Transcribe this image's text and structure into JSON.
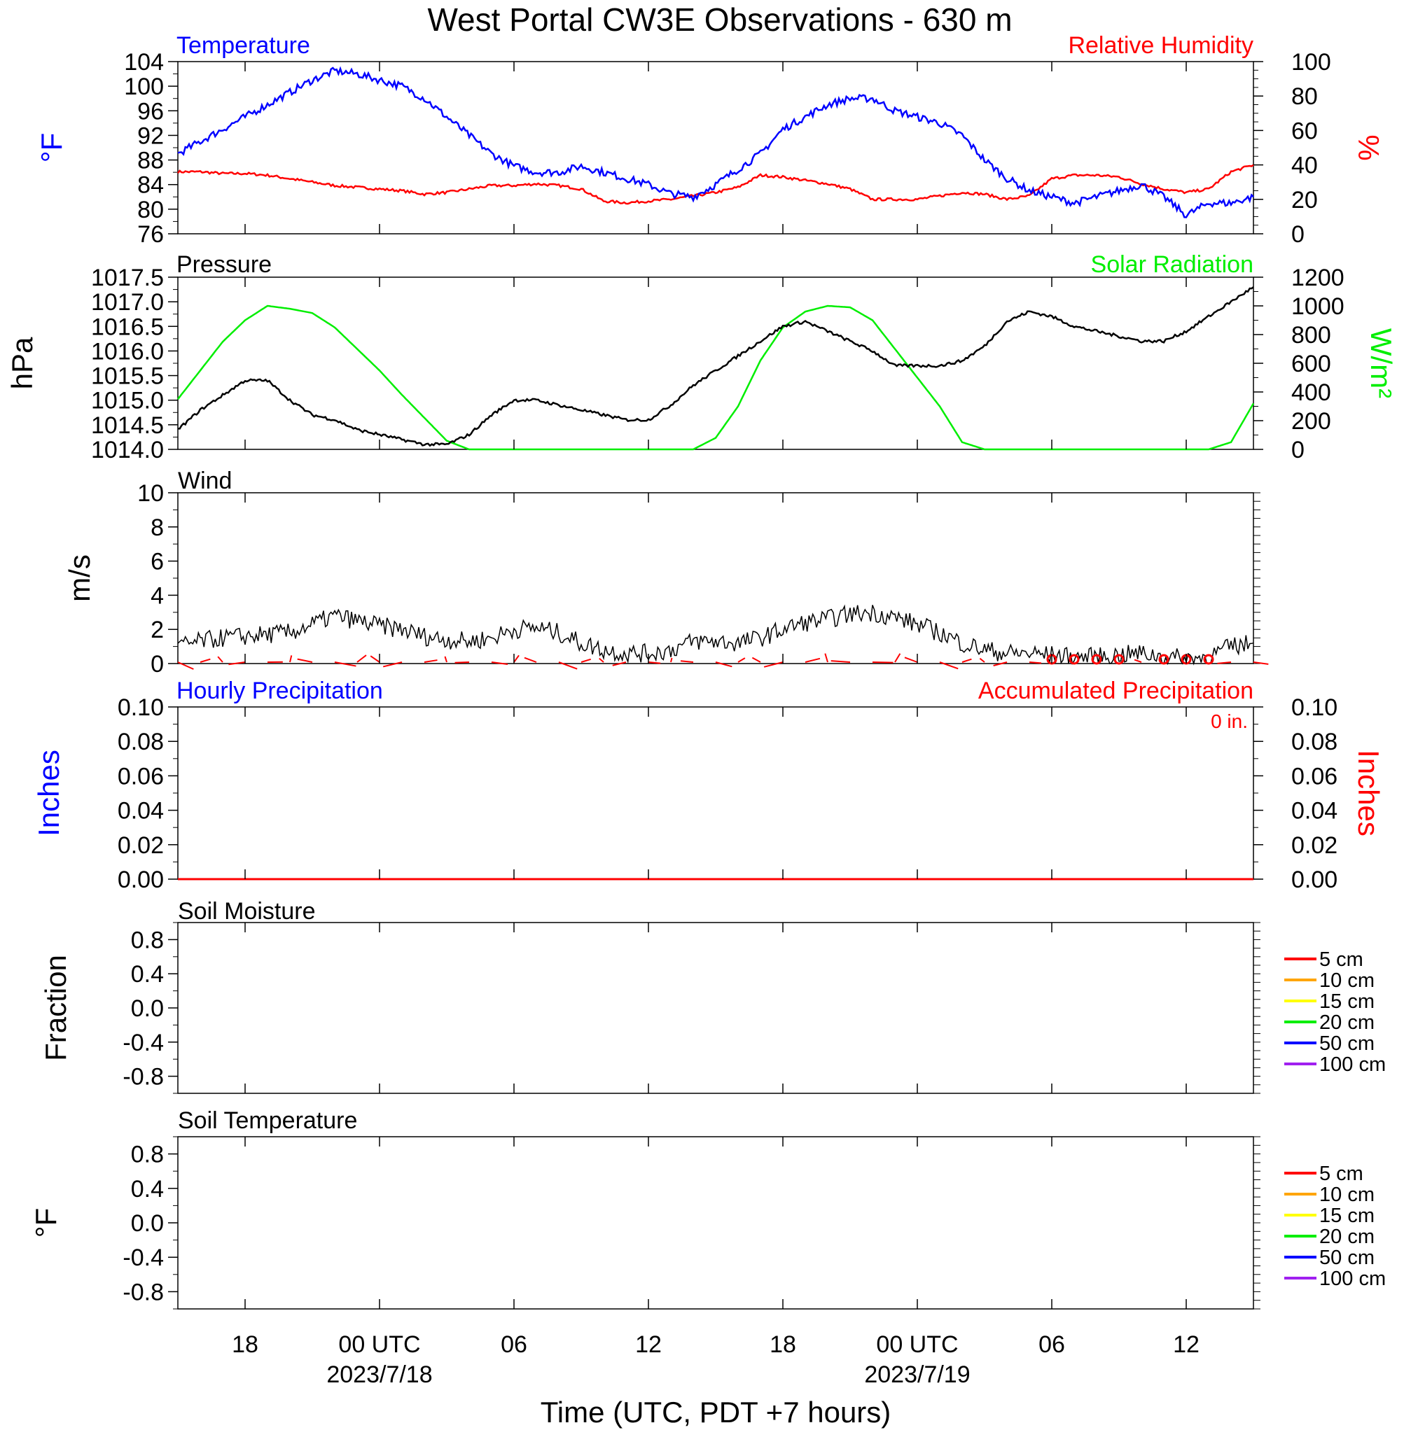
{
  "title": "West Portal CW3E Observations - 630 m",
  "x_axis": {
    "label": "Time (UTC, PDT +7 hours)",
    "ticks": [
      {
        "hour": 18,
        "label": "18",
        "sub": ""
      },
      {
        "hour": 24,
        "label": "00 UTC",
        "sub": "2023/7/18"
      },
      {
        "hour": 30,
        "label": "06",
        "sub": ""
      },
      {
        "hour": 36,
        "label": "12",
        "sub": ""
      },
      {
        "hour": 42,
        "label": "18",
        "sub": ""
      },
      {
        "hour": 48,
        "label": "00 UTC",
        "sub": "2023/7/19"
      },
      {
        "hour": 54,
        "label": "06",
        "sub": ""
      },
      {
        "hour": 60,
        "label": "12",
        "sub": ""
      }
    ]
  },
  "colors": {
    "temperature": "#0000ff",
    "humidity": "#ff0000",
    "pressure": "#000000",
    "solar": "#00ee00",
    "wind": "#000000",
    "barb": "#ff0000",
    "hourly_precip": "#0000ff",
    "accum_precip": "#ff0000"
  },
  "panels": {
    "temp_rh": {
      "left_title": "Temperature",
      "right_title": "Relative Humidity",
      "left_unit": "°F",
      "right_unit": "%",
      "left_ticks": [
        "76",
        "80",
        "84",
        "88",
        "92",
        "96",
        "100",
        "104"
      ],
      "right_ticks": [
        "0",
        "20",
        "40",
        "60",
        "80",
        "100"
      ]
    },
    "pressure_solar": {
      "left_title": "Pressure",
      "right_title": "Solar Radiation",
      "left_unit": "hPa",
      "right_unit": "W/m²",
      "left_ticks": [
        "1014.0",
        "1014.5",
        "1015.0",
        "1015.5",
        "1016.0",
        "1016.5",
        "1017.0",
        "1017.5"
      ],
      "right_ticks": [
        "0",
        "200",
        "400",
        "600",
        "800",
        "1000",
        "1200"
      ]
    },
    "wind": {
      "left_title": "Wind",
      "left_unit": "m/s",
      "left_ticks": [
        "0",
        "2",
        "4",
        "6",
        "8",
        "10"
      ]
    },
    "precip": {
      "left_title": "Hourly Precipitation",
      "right_title": "Accumulated Precipitation",
      "accum_label": "0 in.",
      "left_unit": "Inches",
      "right_unit": "Inches",
      "left_ticks": [
        "0.00",
        "0.02",
        "0.04",
        "0.06",
        "0.08",
        "0.10"
      ],
      "right_ticks": [
        "0.00",
        "0.02",
        "0.04",
        "0.06",
        "0.08",
        "0.10"
      ]
    },
    "soil_moisture": {
      "left_title": "Soil Moisture",
      "left_unit": "Fraction",
      "left_ticks": [
        "-0.8",
        "-0.4",
        "0.0",
        "0.4",
        "0.8"
      ],
      "legend": [
        "5 cm",
        "10 cm",
        "15 cm",
        "20 cm",
        "50 cm",
        "100 cm"
      ]
    },
    "soil_temp": {
      "left_title": "Soil Temperature",
      "left_unit": "°F",
      "left_ticks": [
        "-0.8",
        "-0.4",
        "0.0",
        "0.4",
        "0.8"
      ],
      "legend": [
        "5 cm",
        "10 cm",
        "15 cm",
        "20 cm",
        "50 cm",
        "100 cm"
      ]
    }
  },
  "legend_colors": [
    "#ff0000",
    "#ffa500",
    "#ffff00",
    "#00ee00",
    "#0000ff",
    "#a020f0"
  ],
  "chart_data": [
    {
      "type": "line",
      "title": "Temperature",
      "ylabel": "°F",
      "ylim": [
        76,
        104
      ],
      "x_unit": "hours since 2023-07-17 00 UTC",
      "series": [
        {
          "name": "Temperature",
          "color": "#0000ff",
          "x": [
            15,
            16,
            17,
            18,
            19,
            20,
            21,
            22,
            23,
            24,
            25,
            26,
            27,
            28,
            29,
            30,
            31,
            32,
            33,
            34,
            35,
            36,
            37,
            38,
            39,
            40,
            41,
            42,
            43,
            44,
            45,
            46,
            47,
            48,
            49,
            50,
            51,
            52,
            53,
            54,
            55,
            56,
            57,
            58,
            59,
            60,
            61,
            62,
            63
          ],
          "y": [
            89,
            91,
            93,
            95,
            97,
            99,
            101,
            102.5,
            102,
            101,
            100,
            98,
            95,
            92,
            89,
            87,
            86,
            86,
            87,
            86,
            85,
            84,
            82.5,
            82,
            84,
            86.5,
            89,
            93,
            95,
            97,
            98,
            98,
            96,
            95,
            94,
            92,
            88,
            85,
            83,
            82,
            81,
            82,
            83,
            84,
            82,
            79,
            81,
            81,
            82
          ]
        }
      ]
    },
    {
      "type": "line",
      "title": "Relative Humidity",
      "ylabel": "%",
      "ylim": [
        0,
        100
      ],
      "series": [
        {
          "name": "Relative Humidity",
          "color": "#ff0000",
          "x": [
            15,
            16,
            17,
            18,
            19,
            20,
            21,
            22,
            23,
            24,
            25,
            26,
            27,
            28,
            29,
            30,
            31,
            32,
            33,
            34,
            35,
            36,
            37,
            38,
            39,
            40,
            41,
            42,
            43,
            44,
            45,
            46,
            47,
            48,
            49,
            50,
            51,
            52,
            53,
            54,
            55,
            56,
            57,
            58,
            59,
            60,
            61,
            62,
            63
          ],
          "y": [
            36,
            36,
            35,
            35,
            34,
            32,
            30,
            28,
            27,
            26,
            25,
            23,
            24,
            26,
            28,
            28,
            29,
            28,
            26,
            19,
            18,
            19,
            20,
            22,
            24,
            27,
            34,
            33,
            31,
            29,
            26,
            20,
            20,
            20,
            22,
            24,
            23,
            20,
            22,
            32,
            34,
            34,
            33,
            29,
            26,
            24,
            26,
            36,
            40
          ]
        }
      ]
    },
    {
      "type": "line",
      "title": "Pressure",
      "ylabel": "hPa",
      "ylim": [
        1014.0,
        1017.5
      ],
      "series": [
        {
          "name": "Pressure",
          "color": "#000000",
          "x": [
            15,
            16,
            17,
            18,
            19,
            20,
            21,
            22,
            23,
            24,
            25,
            26,
            27,
            28,
            29,
            30,
            31,
            32,
            33,
            34,
            35,
            36,
            37,
            38,
            39,
            40,
            41,
            42,
            43,
            44,
            45,
            46,
            47,
            48,
            49,
            50,
            51,
            52,
            53,
            54,
            55,
            56,
            57,
            58,
            59,
            60,
            61,
            62,
            63
          ],
          "y": [
            1014.4,
            1014.8,
            1015.1,
            1015.4,
            1015.4,
            1015.0,
            1014.7,
            1014.6,
            1014.4,
            1014.3,
            1014.2,
            1014.1,
            1014.1,
            1014.3,
            1014.7,
            1015.0,
            1015.0,
            1014.9,
            1014.8,
            1014.7,
            1014.6,
            1014.6,
            1014.9,
            1015.3,
            1015.6,
            1015.9,
            1016.2,
            1016.5,
            1016.6,
            1016.4,
            1016.2,
            1016.0,
            1015.7,
            1015.7,
            1015.7,
            1015.8,
            1016.1,
            1016.6,
            1016.8,
            1016.7,
            1016.5,
            1016.4,
            1016.3,
            1016.2,
            1016.2,
            1016.4,
            1016.7,
            1017.0,
            1017.3
          ]
        }
      ]
    },
    {
      "type": "line",
      "title": "Solar Radiation",
      "ylabel": "W/m²",
      "ylim": [
        0,
        1200
      ],
      "series": [
        {
          "name": "Solar Radiation",
          "color": "#00ee00",
          "x": [
            15,
            16,
            17,
            18,
            19,
            20,
            21,
            22,
            23,
            24,
            25,
            26,
            27,
            28,
            29,
            30,
            31,
            32,
            33,
            34,
            35,
            36,
            37,
            38,
            39,
            40,
            41,
            42,
            43,
            44,
            45,
            46,
            47,
            48,
            49,
            50,
            51,
            52,
            53,
            54,
            55,
            56,
            57,
            58,
            59,
            60,
            61,
            62,
            63
          ],
          "y": [
            350,
            550,
            750,
            900,
            1000,
            980,
            950,
            850,
            700,
            550,
            380,
            220,
            60,
            0,
            0,
            0,
            0,
            0,
            0,
            0,
            0,
            0,
            0,
            0,
            80,
            300,
            620,
            850,
            960,
            1000,
            990,
            900,
            700,
            500,
            300,
            50,
            0,
            0,
            0,
            0,
            0,
            0,
            0,
            0,
            0,
            0,
            0,
            50,
            320
          ]
        }
      ]
    },
    {
      "type": "line",
      "title": "Wind",
      "ylabel": "m/s",
      "ylim": [
        0,
        10
      ],
      "series": [
        {
          "name": "Wind",
          "color": "#000000",
          "x": [
            15,
            16,
            17,
            18,
            19,
            20,
            21,
            22,
            23,
            24,
            25,
            26,
            27,
            28,
            29,
            30,
            31,
            32,
            33,
            34,
            35,
            36,
            37,
            38,
            39,
            40,
            41,
            42,
            43,
            44,
            45,
            46,
            47,
            48,
            49,
            50,
            51,
            52,
            53,
            54,
            55,
            56,
            57,
            58,
            59,
            60,
            61,
            62,
            63
          ],
          "y": [
            1.0,
            1.3,
            1.5,
            1.6,
            1.7,
            1.8,
            2.3,
            2.8,
            2.5,
            2.2,
            2.0,
            1.6,
            1.4,
            1.3,
            1.5,
            2.0,
            2.1,
            1.8,
            1.2,
            0.8,
            0.6,
            0.6,
            0.8,
            1.3,
            1.3,
            1.2,
            1.5,
            2.0,
            2.4,
            2.6,
            2.9,
            3.0,
            2.7,
            2.3,
            1.8,
            1.2,
            0.8,
            0.6,
            0.6,
            0.5,
            0.4,
            0.4,
            0.5,
            0.6,
            0.4,
            0.3,
            0.4,
            1.0,
            1.2
          ]
        }
      ]
    },
    {
      "type": "line",
      "title": "Hourly Precipitation",
      "ylabel": "Inches",
      "ylim": [
        0,
        0.1
      ],
      "series": [
        {
          "name": "Hourly Precipitation",
          "color": "#0000ff",
          "x": [
            15,
            63
          ],
          "y": [
            0,
            0
          ]
        },
        {
          "name": "Accumulated Precipitation",
          "color": "#ff0000",
          "x": [
            15,
            63
          ],
          "y": [
            0,
            0
          ]
        }
      ]
    },
    {
      "type": "line",
      "title": "Soil Moisture",
      "ylabel": "Fraction",
      "ylim": [
        -1,
        1
      ],
      "series": []
    },
    {
      "type": "line",
      "title": "Soil Temperature",
      "ylabel": "°F",
      "ylim": [
        -1,
        1
      ],
      "series": []
    }
  ]
}
